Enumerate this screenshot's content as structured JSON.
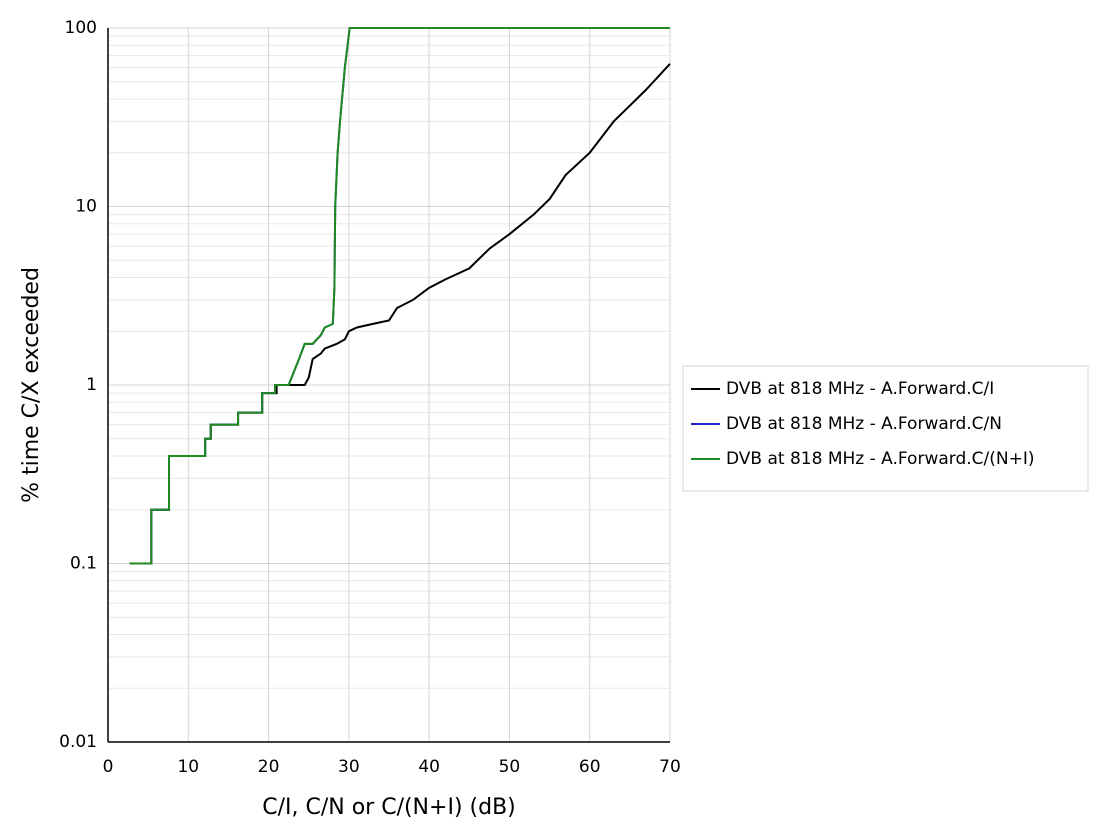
{
  "chart_data": {
    "type": "line",
    "xlabel": "C/I, C/N or C/(N+I) (dB)",
    "ylabel": "% time C/X exceeded",
    "xlim": [
      0,
      70
    ],
    "xticks": [
      0,
      10,
      20,
      30,
      40,
      50,
      60,
      70
    ],
    "ylim": [
      0.01,
      100
    ],
    "yticks": [
      0.01,
      0.1,
      1,
      10,
      100
    ],
    "yminorticks": [
      0.02,
      0.03,
      0.04,
      0.05,
      0.06,
      0.07,
      0.08,
      0.09,
      0.2,
      0.3,
      0.4,
      0.5,
      0.6,
      0.7,
      0.8,
      0.9,
      2,
      3,
      4,
      5,
      6,
      7,
      8,
      9,
      20,
      30,
      40,
      50,
      60,
      70,
      80,
      90
    ],
    "yscale": "log",
    "grid": true,
    "legend": "right",
    "series": [
      {
        "name": "DVB at 818 MHz - A.Forward.C/I",
        "color": "#000000",
        "x": [
          2.7,
          5.4,
          5.4,
          7.6,
          7.6,
          12.1,
          12.1,
          12.8,
          12.8,
          16.2,
          16.2,
          19.2,
          19.2,
          21,
          21,
          24.5,
          25,
          25.5,
          26.5,
          27,
          28.5,
          29.5,
          30,
          31,
          33,
          35,
          36,
          38,
          40,
          42,
          45,
          47.5,
          50,
          53,
          55,
          57,
          60,
          63,
          67,
          70
        ],
        "values": [
          0.1,
          0.1,
          0.2,
          0.2,
          0.4,
          0.4,
          0.5,
          0.5,
          0.6,
          0.6,
          0.7,
          0.7,
          0.9,
          0.9,
          1.0,
          1.0,
          1.1,
          1.4,
          1.5,
          1.6,
          1.7,
          1.8,
          2.0,
          2.1,
          2.2,
          2.3,
          2.7,
          3.0,
          3.5,
          3.9,
          4.5,
          5.8,
          7,
          9,
          11,
          15,
          20,
          30,
          45,
          63
        ]
      },
      {
        "name": "DVB at 818 MHz - A.Forward.C/N",
        "color": "#2424c8",
        "x": [
          2.7,
          5.4,
          5.4,
          7.6,
          7.6,
          12.1,
          12.1,
          12.8,
          12.8,
          16.2,
          16.2,
          19.2,
          19.2,
          20.8,
          20.8,
          22.5,
          23.2,
          23.8,
          24.5,
          25.5,
          26.5,
          27,
          28,
          28.2,
          28.3,
          28.6,
          28.9,
          29.5,
          30.1,
          70
        ],
        "values": [
          0.1,
          0.1,
          0.2,
          0.2,
          0.4,
          0.4,
          0.5,
          0.5,
          0.6,
          0.6,
          0.7,
          0.7,
          0.9,
          0.9,
          1.0,
          1.0,
          1.2,
          1.4,
          1.7,
          1.7,
          1.9,
          2.1,
          2.2,
          3.5,
          10,
          20,
          30,
          60,
          100,
          100
        ]
      },
      {
        "name": "DVB at 818 MHz - A.Forward.C/(N+I)",
        "color": "#1f8a1f",
        "x": [
          2.7,
          5.4,
          5.4,
          7.6,
          7.6,
          12.1,
          12.1,
          12.8,
          12.8,
          16.2,
          16.2,
          19.2,
          19.2,
          20.8,
          20.8,
          22.5,
          23.2,
          23.8,
          24.5,
          25.5,
          26.5,
          27,
          28,
          28.2,
          28.3,
          28.6,
          28.9,
          29.5,
          30.1,
          70
        ],
        "values": [
          0.1,
          0.1,
          0.2,
          0.2,
          0.4,
          0.4,
          0.5,
          0.5,
          0.6,
          0.6,
          0.7,
          0.7,
          0.9,
          0.9,
          1.0,
          1.0,
          1.2,
          1.4,
          1.7,
          1.7,
          1.9,
          2.1,
          2.2,
          3.5,
          10,
          20,
          30,
          60,
          100,
          100
        ]
      }
    ]
  }
}
